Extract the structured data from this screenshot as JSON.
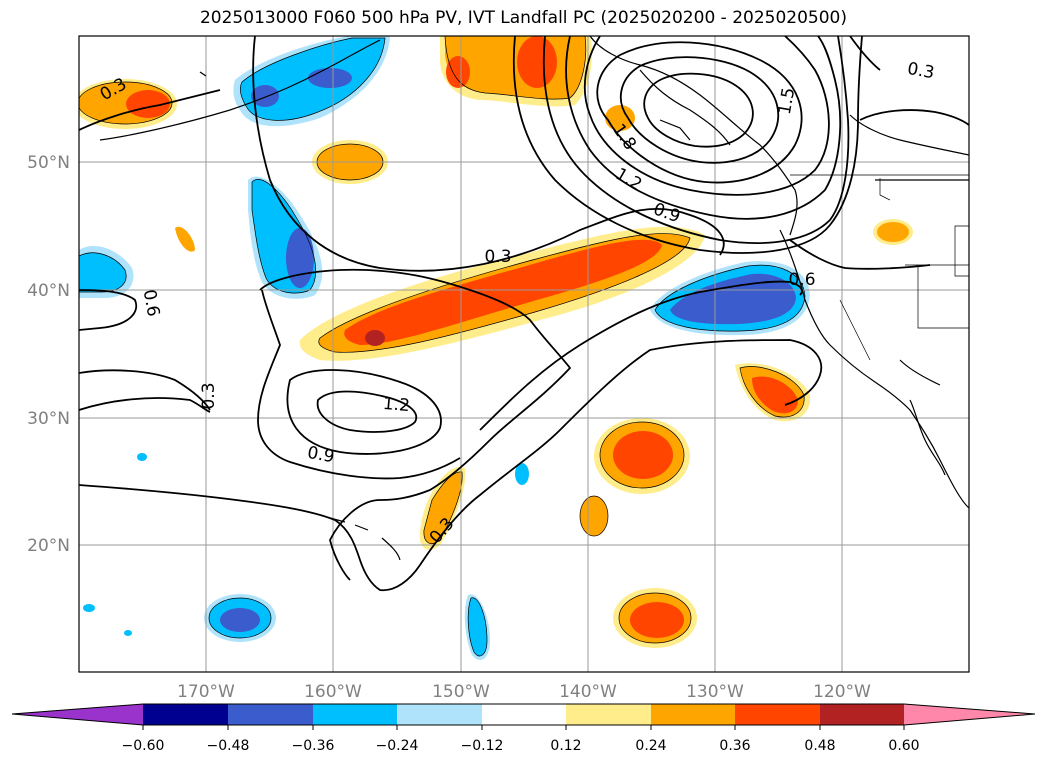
{
  "title": "2025013000 F060 500 hPa PV, IVT Landfall PC (2025020200 - 2025020500)",
  "lat_labels": [
    "50°N",
    "40°N",
    "30°N",
    "20°N"
  ],
  "lon_labels": [
    "170°W",
    "160°W",
    "150°W",
    "140°W",
    "130°W",
    "120°W"
  ],
  "contour_labels": [
    "0.3",
    "0.3",
    "0.3",
    "0.3",
    "0.6",
    "0.6",
    "0.9",
    "0.9",
    "1.2",
    "1.2",
    "1.5",
    "1.8"
  ],
  "colorbar": {
    "ticks": [
      "−0.60",
      "−0.48",
      "−0.36",
      "−0.24",
      "−0.12",
      "0.12",
      "0.24",
      "0.36",
      "0.48",
      "0.60"
    ],
    "colors": [
      "#9933cc",
      "#000090",
      "#3a5ccc",
      "#00bfff",
      "#afe3fb",
      "#ffffff",
      "#ffec8b",
      "#ffa500",
      "#ff4500",
      "#b22222",
      "#ff88aa"
    ]
  },
  "colors": {
    "contour": "#000000",
    "grid": "#9a9a9a",
    "axis_label": "#808080"
  }
}
